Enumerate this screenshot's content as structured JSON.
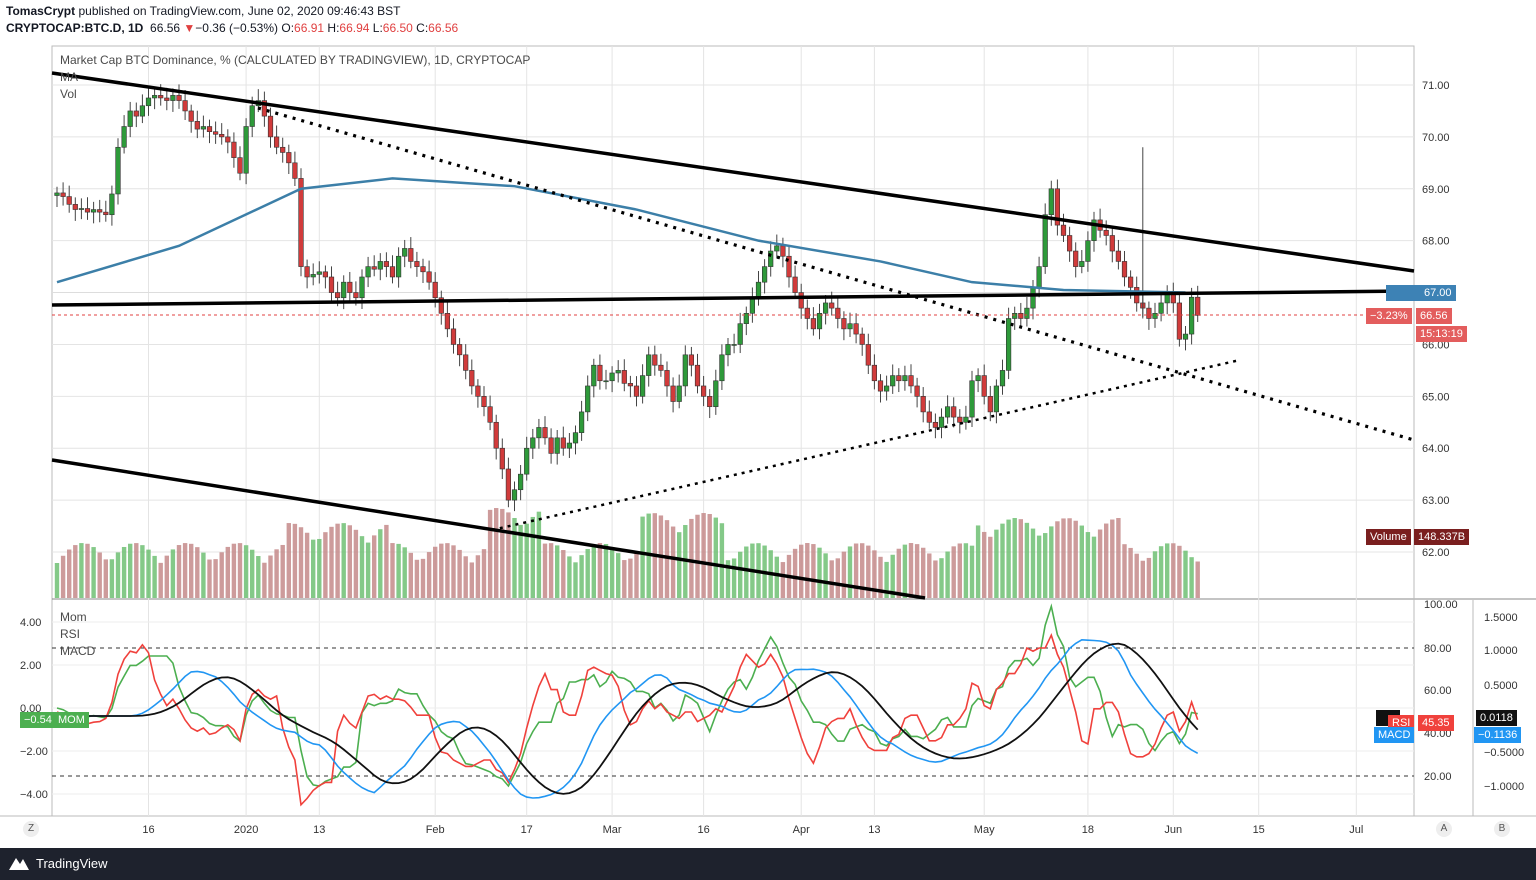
{
  "header": {
    "author": "TomasCrypt",
    "published_text": "published on TradingView.com, June 02, 2020 09:46:43 BST",
    "symbol": "CRYPTOCAP:BTC.D, 1D",
    "last": "66.56",
    "change_arrow": "▼",
    "change": "−0.36 (−0.53%)",
    "o_label": "O:",
    "o": "66.91",
    "h_label": "H:",
    "h": "66.94",
    "l_label": "L:",
    "l": "66.50",
    "c_label": "C:",
    "c": "66.56"
  },
  "main_panel": {
    "title": "Market Cap BTC Dominance, % (CALCULATED BY TRADINGVIEW), 1D, CRYPTOCAP",
    "legend_ma": "MA",
    "legend_vol": "Vol",
    "ma_badge_value": "67.00",
    "change_badge": "−3.23%",
    "price_badge": "66.56",
    "countdown": "15:13:19",
    "volume_label": "Volume",
    "volume_value": "148.337B"
  },
  "sub_panel": {
    "legend_mom": "Mom",
    "legend_rsi": "RSI",
    "legend_macd": "MACD",
    "mom_badge_value": "−0.54",
    "mom_badge_label": "MOM",
    "rsi_badge_label": "RSI",
    "rsi_badge_value": "45.35",
    "signal_badge_value": "0.0118",
    "macd_badge_label": "MACD",
    "macd_badge_value": "−0.1136"
  },
  "footer": {
    "brand": "TradingView"
  },
  "bottom_buttons": {
    "zoom": "Z",
    "auto": "A",
    "brand": "B"
  },
  "chart_data": {
    "type": "candlestick",
    "title": "Market Cap BTC Dominance, % (CALCULATED BY TRADINGVIEW), 1D, CRYPTOCAP",
    "y_ticks": [
      "71.00",
      "70.00",
      "69.00",
      "68.00",
      "67.00",
      "66.00",
      "65.00",
      "64.00",
      "63.00",
      "62.00"
    ],
    "y_tick_values": [
      71,
      70,
      69,
      68,
      67,
      66,
      65,
      64,
      63,
      62
    ],
    "x_ticks": [
      "16",
      "2020",
      "13",
      "Feb",
      "17",
      "Mar",
      "16",
      "Apr",
      "13",
      "May",
      "18",
      "Jun",
      "15",
      "Jul"
    ],
    "x_tick_days": [
      15,
      31,
      43,
      62,
      77,
      91,
      106,
      122,
      134,
      152,
      169,
      183,
      197,
      213
    ],
    "days": 185,
    "closes": [
      68.92,
      68.85,
      68.7,
      68.6,
      68.62,
      68.55,
      68.6,
      68.55,
      68.5,
      68.9,
      69.8,
      70.2,
      70.5,
      70.4,
      70.6,
      70.75,
      70.8,
      70.75,
      70.7,
      70.8,
      70.7,
      70.5,
      70.3,
      70.15,
      70.2,
      70.1,
      70.05,
      70.0,
      69.9,
      69.6,
      69.3,
      70.2,
      70.6,
      70.7,
      70.4,
      70.0,
      69.8,
      69.7,
      69.5,
      69.2,
      67.5,
      67.3,
      67.35,
      67.4,
      67.3,
      67.0,
      66.9,
      67.2,
      67.0,
      66.9,
      67.3,
      67.5,
      67.45,
      67.6,
      67.5,
      67.3,
      67.7,
      67.85,
      67.6,
      67.5,
      67.4,
      67.2,
      66.9,
      66.6,
      66.3,
      66.0,
      65.8,
      65.5,
      65.2,
      65.0,
      64.8,
      64.5,
      64.0,
      63.6,
      63.0,
      63.2,
      63.5,
      64.0,
      64.2,
      64.4,
      64.2,
      63.9,
      64.2,
      64.0,
      64.1,
      64.3,
      64.7,
      65.2,
      65.6,
      65.3,
      65.3,
      65.45,
      65.5,
      65.25,
      65.2,
      65.0,
      65.4,
      65.8,
      65.6,
      65.5,
      65.2,
      64.9,
      65.2,
      65.8,
      65.6,
      65.2,
      65.0,
      64.8,
      65.3,
      65.8,
      66.0,
      66.0,
      66.4,
      66.6,
      66.9,
      67.2,
      67.5,
      67.8,
      67.9,
      67.7,
      67.3,
      67.0,
      66.7,
      66.5,
      66.3,
      66.6,
      66.8,
      66.7,
      66.5,
      66.3,
      66.4,
      66.2,
      66.0,
      65.6,
      65.3,
      65.1,
      65.2,
      65.4,
      65.3,
      65.4,
      65.2,
      65.0,
      64.7,
      64.5,
      64.4,
      64.6,
      64.8,
      64.6,
      64.5,
      64.6,
      65.3,
      65.4,
      65.0,
      64.7,
      65.2,
      65.5,
      66.5,
      66.6,
      66.5,
      66.7,
      67.1,
      67.5,
      68.5,
      69.0,
      68.3,
      68.1,
      67.8,
      67.5,
      67.6,
      68.0,
      68.4,
      68.2,
      68.1,
      67.8,
      67.6,
      67.3,
      67.1,
      66.8,
      66.7,
      66.5,
      66.6,
      66.8,
      67.0,
      66.8,
      66.1,
      66.2,
      66.91,
      66.56
    ]
  }
}
